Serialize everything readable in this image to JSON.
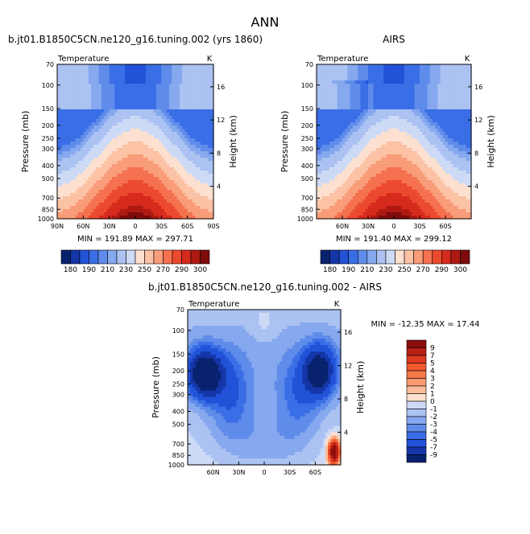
{
  "page_title": "ANN",
  "chart_data": [
    {
      "id": "model",
      "type": "heatmap",
      "title": "b.jt01.B1850C5CN.ne120_g16.tuning.002 (yrs 1860)",
      "panel_label": "Temperature",
      "units": "K",
      "xlabel": "",
      "ylabel": "Pressure (mb)",
      "y2label": "Height (km)",
      "x_ticks": [
        "90N",
        "60N",
        "30N",
        "0",
        "30S",
        "60S",
        "90S"
      ],
      "y_ticks": [
        "70",
        "100",
        "150",
        "200",
        "250",
        "300",
        "400",
        "500",
        "700",
        "850",
        "1000"
      ],
      "y2_ticks": [
        "16",
        "12",
        "8",
        "4"
      ],
      "stats": "MIN = 191.89   MAX = 297.71",
      "min": 191.89,
      "max": 297.71,
      "colorbar_ticks": [
        "180",
        "190",
        "210",
        "230",
        "250",
        "270",
        "290",
        "300"
      ],
      "colorbar_colors": [
        "#08226e",
        "#1536a8",
        "#2152d8",
        "#3a6ee6",
        "#5f8cea",
        "#86a8ee",
        "#abc2f2",
        "#cddaf6",
        "#fde0cf",
        "#fcc2a5",
        "#f99c79",
        "#f5714f",
        "#ec4a2f",
        "#d62a1c",
        "#ae1a12",
        "#7e0c0c"
      ]
    },
    {
      "id": "obs",
      "type": "heatmap",
      "title": "AIRS",
      "panel_label": "Temperature",
      "units": "K",
      "xlabel": "",
      "ylabel": "Pressure (mb)",
      "y2label": "Height (km)",
      "x_ticks": [
        "60N",
        "30N",
        "0",
        "30S",
        "60S"
      ],
      "y_ticks": [
        "70",
        "100",
        "150",
        "200",
        "250",
        "300",
        "400",
        "500",
        "700",
        "850",
        "1000"
      ],
      "y2_ticks": [
        "16",
        "12",
        "8",
        "4"
      ],
      "stats": "MIN = 191.40   MAX = 299.12",
      "min": 191.4,
      "max": 299.12,
      "colorbar_ticks": [
        "180",
        "190",
        "210",
        "230",
        "250",
        "270",
        "290",
        "300"
      ],
      "colorbar_colors": [
        "#08226e",
        "#1536a8",
        "#2152d8",
        "#3a6ee6",
        "#5f8cea",
        "#86a8ee",
        "#abc2f2",
        "#cddaf6",
        "#fde0cf",
        "#fcc2a5",
        "#f99c79",
        "#f5714f",
        "#ec4a2f",
        "#d62a1c",
        "#ae1a12",
        "#7e0c0c"
      ]
    },
    {
      "id": "diff",
      "type": "heatmap",
      "title": "b.jt01.B1850C5CN.ne120_g16.tuning.002 - AIRS",
      "panel_label": "Temperature",
      "units": "K",
      "xlabel": "",
      "ylabel": "Pressure (mb)",
      "y2label": "Height (km)",
      "x_ticks": [
        "60N",
        "30N",
        "0",
        "30S",
        "60S"
      ],
      "y_ticks": [
        "70",
        "100",
        "150",
        "200",
        "250",
        "300",
        "400",
        "500",
        "700",
        "850",
        "1000"
      ],
      "y2_ticks": [
        "16",
        "12",
        "8",
        "4"
      ],
      "stats": "MIN = -12.35   MAX =  17.44",
      "min": -12.35,
      "max": 17.44,
      "colorbar_ticks": [
        "9",
        "7",
        "5",
        "4",
        "3",
        "2",
        "1",
        "0",
        "-1",
        "-2",
        "-3",
        "-4",
        "-5",
        "-7",
        "-9"
      ],
      "colorbar_colors": [
        "#8b0d0d",
        "#b81f14",
        "#dd3a1f",
        "#f0582e",
        "#f6774a",
        "#f99a70",
        "#fbbd99",
        "#fde0cf",
        "#cddaf6",
        "#abc2f2",
        "#86a8ee",
        "#5f8cea",
        "#3a6ee6",
        "#2152d8",
        "#1536a8",
        "#08226e"
      ]
    }
  ]
}
